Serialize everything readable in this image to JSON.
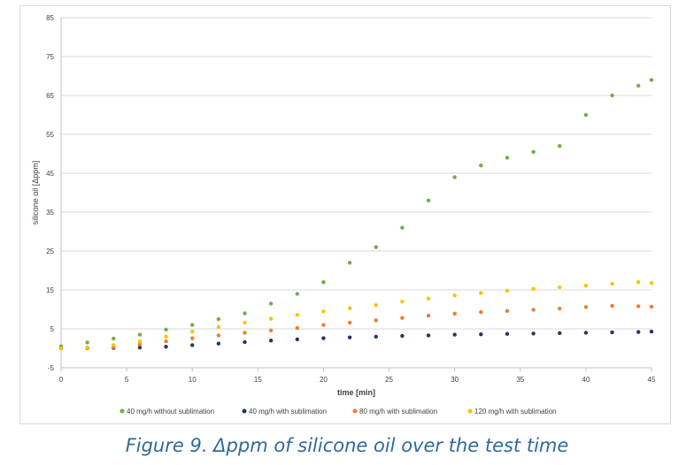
{
  "chart_data": {
    "type": "scatter",
    "xlabel": "time [min]",
    "ylabel": "silicone oil [Δppm]",
    "xlim": [
      0,
      45
    ],
    "ylim": [
      -5,
      85
    ],
    "xticks": [
      0,
      5,
      10,
      15,
      20,
      25,
      30,
      35,
      40,
      45
    ],
    "yticks": [
      -5,
      5,
      15,
      25,
      35,
      45,
      55,
      65,
      75,
      85
    ],
    "grid": "horizontal",
    "legend_position": "bottom",
    "series": [
      {
        "name": "40 mg/h without sublimation",
        "color": "#70ad47",
        "x": [
          0,
          2,
          4,
          6,
          8,
          10,
          12,
          14,
          16,
          18,
          20,
          22,
          24,
          26,
          28,
          30,
          32,
          34,
          36,
          38,
          40,
          42,
          44,
          45
        ],
        "y": [
          0.5,
          1.5,
          2.5,
          3.5,
          4.8,
          6.0,
          7.5,
          9.0,
          11.5,
          14.0,
          17.0,
          22.0,
          26.0,
          31.0,
          38.0,
          44.0,
          47.0,
          49.0,
          50.5,
          52.0,
          60.0,
          65.0,
          67.5,
          69.0
        ]
      },
      {
        "name": "40 mg/h with sublimation",
        "color": "#203864",
        "x": [
          0,
          2,
          4,
          6,
          8,
          10,
          12,
          14,
          16,
          18,
          20,
          22,
          24,
          26,
          28,
          30,
          32,
          34,
          36,
          38,
          40,
          42,
          44,
          45
        ],
        "y": [
          0,
          0,
          0.1,
          0.2,
          0.4,
          0.8,
          1.2,
          1.6,
          2.0,
          2.3,
          2.6,
          2.8,
          3.0,
          3.2,
          3.3,
          3.5,
          3.6,
          3.7,
          3.8,
          3.9,
          4.0,
          4.1,
          4.2,
          4.3
        ]
      },
      {
        "name": "80 mg/h with sublimation",
        "color": "#ed7d31",
        "x": [
          0,
          2,
          4,
          6,
          8,
          10,
          12,
          14,
          16,
          18,
          20,
          22,
          24,
          26,
          28,
          30,
          32,
          34,
          36,
          38,
          40,
          42,
          44,
          45
        ],
        "y": [
          0,
          0,
          0.3,
          1.0,
          1.8,
          2.6,
          3.3,
          4.0,
          4.6,
          5.2,
          6.0,
          6.6,
          7.2,
          7.8,
          8.4,
          8.9,
          9.3,
          9.6,
          9.9,
          10.2,
          10.6,
          10.9,
          10.8,
          10.7
        ]
      },
      {
        "name": "120 mg/h with sublimation",
        "color": "#ffc000",
        "x": [
          0,
          2,
          4,
          6,
          8,
          10,
          12,
          14,
          16,
          18,
          20,
          22,
          24,
          26,
          28,
          30,
          32,
          34,
          36,
          38,
          40,
          42,
          44,
          45
        ],
        "y": [
          0,
          0.2,
          0.8,
          1.8,
          3.0,
          4.3,
          5.5,
          6.6,
          7.6,
          8.6,
          9.5,
          10.3,
          11.1,
          12.0,
          12.8,
          13.6,
          14.2,
          14.8,
          15.3,
          15.7,
          16.1,
          16.6,
          17.0,
          16.8
        ]
      }
    ]
  },
  "caption": "Figure 9. Δppm of silicone oil over the test time"
}
